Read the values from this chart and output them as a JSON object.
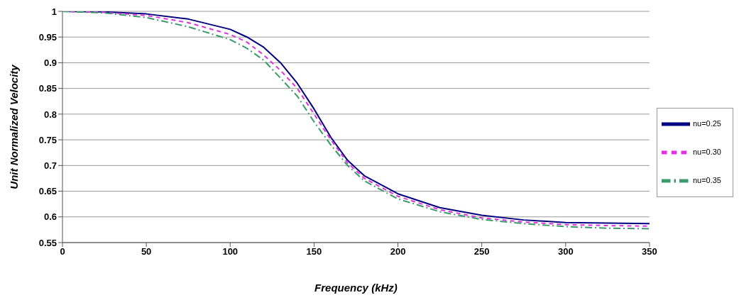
{
  "chart_data": {
    "type": "line",
    "xlabel": "Frequency (kHz)",
    "ylabel": "Unit Normalized Velocity",
    "x": [
      0,
      25,
      50,
      75,
      100,
      110,
      120,
      130,
      140,
      150,
      160,
      170,
      180,
      200,
      225,
      250,
      275,
      300,
      325,
      350
    ],
    "series": [
      {
        "name": "nu=0.25",
        "color": "#000080",
        "line_style": "solid",
        "values": [
          1,
          0.999,
          0.995,
          0.985,
          0.965,
          0.95,
          0.93,
          0.9,
          0.86,
          0.81,
          0.755,
          0.71,
          0.68,
          0.645,
          0.618,
          0.603,
          0.594,
          0.589,
          0.588,
          0.587
        ]
      },
      {
        "name": "nu=0.30",
        "color": "#e030e0",
        "line_style": "dashed",
        "values": [
          1,
          0.998,
          0.992,
          0.978,
          0.955,
          0.94,
          0.915,
          0.885,
          0.85,
          0.8,
          0.75,
          0.705,
          0.675,
          0.64,
          0.614,
          0.598,
          0.59,
          0.585,
          0.583,
          0.582
        ]
      },
      {
        "name": "nu=0.35",
        "color": "#3a9a6a",
        "line_style": "dashdot",
        "values": [
          1,
          0.997,
          0.988,
          0.97,
          0.945,
          0.928,
          0.905,
          0.87,
          0.835,
          0.785,
          0.74,
          0.7,
          0.67,
          0.635,
          0.61,
          0.595,
          0.587,
          0.581,
          0.578,
          0.577
        ]
      }
    ],
    "xlim": [
      0,
      350
    ],
    "xticks": [
      0,
      50,
      100,
      150,
      200,
      250,
      300,
      350
    ],
    "ylim": [
      0.55,
      1
    ],
    "yticks": [
      0.55,
      0.6,
      0.65,
      0.7,
      0.75,
      0.8,
      0.85,
      0.9,
      0.95,
      1
    ],
    "grid": "y",
    "legend": "right",
    "marker": "none"
  }
}
